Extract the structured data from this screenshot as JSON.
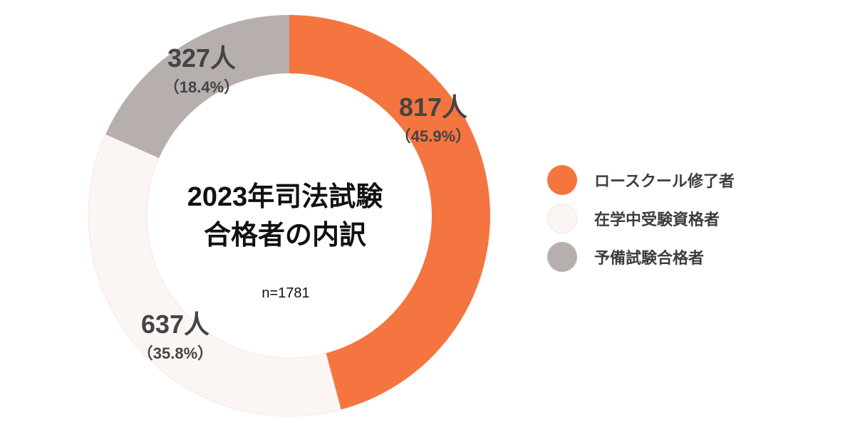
{
  "chart_data": {
    "type": "pie",
    "donut": true,
    "title": [
      "2023年司法試験",
      "合格者の内訳"
    ],
    "subtitle": "n=1781",
    "categories": [
      "ロースクール修了者",
      "在学中受験資格者",
      "予備試験合格者"
    ],
    "values": [
      817,
      637,
      327
    ],
    "value_labels": [
      "817人",
      "637人",
      "327人"
    ],
    "percent_labels": [
      "（45.9%）",
      "（35.8%）",
      "（18.4%）"
    ],
    "percents": [
      45.9,
      35.8,
      18.4
    ],
    "colors": [
      "#F47540",
      "#FBF6F4",
      "#B6AFAD"
    ],
    "start": "top",
    "direction": "clockwise",
    "legend_position": "right"
  }
}
